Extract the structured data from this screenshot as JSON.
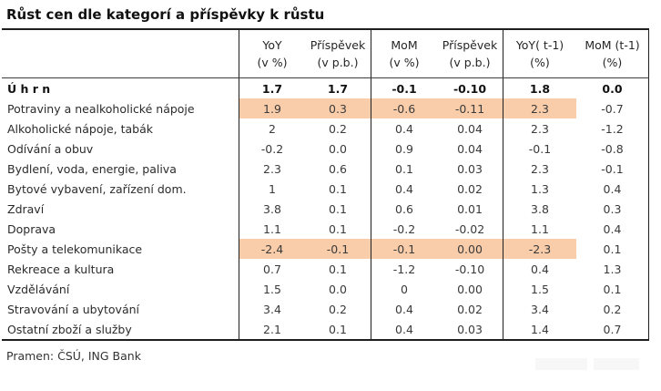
{
  "chart_data": {
    "type": "table",
    "title": "Růst cen dle kategorí a příspěvky k růstu",
    "source": "Pramen: ČSÚ, ING Bank",
    "column_headers": [
      {
        "line1": "YoY",
        "line2": "(v %)"
      },
      {
        "line1": "Příspěvek",
        "line2": "(v p.b.)"
      },
      {
        "line1": "MoM",
        "line2": "(v %)"
      },
      {
        "line1": "Příspěvek",
        "line2": "(v p.b.)"
      },
      {
        "line1": "YoY( t-1)",
        "line2": "(%)"
      },
      {
        "line1": "MoM (t-1)",
        "line2": "(%)"
      }
    ],
    "rows": [
      {
        "label": "Ú h r n",
        "values": [
          "1.7",
          "1.7",
          "-0.1",
          "-0.10",
          "1.8",
          "0.0"
        ],
        "bold": true,
        "highlighted": false
      },
      {
        "label": "Potraviny a nealkoholické nápoje",
        "values": [
          "1.9",
          "0.3",
          "-0.6",
          "-0.11",
          "2.3",
          "-0.7"
        ],
        "bold": false,
        "highlighted": true
      },
      {
        "label": "Alkoholické nápoje, tabák",
        "values": [
          "2",
          "0.2",
          "0.4",
          "0.04",
          "2.3",
          "-1.2"
        ],
        "bold": false,
        "highlighted": false
      },
      {
        "label": "Odívání a obuv",
        "values": [
          "-0.2",
          "0.0",
          "0.9",
          "0.04",
          "-0.1",
          "-0.8"
        ],
        "bold": false,
        "highlighted": false
      },
      {
        "label": "Bydlení, voda, energie, paliva",
        "values": [
          "2.3",
          "0.6",
          "0.1",
          "0.03",
          "2.3",
          "-0.1"
        ],
        "bold": false,
        "highlighted": false
      },
      {
        "label": "Bytové vybavení, zařízení dom.",
        "values": [
          "1",
          "0.1",
          "0.4",
          "0.02",
          "1.3",
          "0.4"
        ],
        "bold": false,
        "highlighted": false
      },
      {
        "label": "Zdraví",
        "values": [
          "3.8",
          "0.1",
          "0.6",
          "0.01",
          "3.8",
          "0.3"
        ],
        "bold": false,
        "highlighted": false
      },
      {
        "label": "Doprava",
        "values": [
          "1.1",
          "0.1",
          "-0.2",
          "-0.02",
          "1.1",
          "0.4"
        ],
        "bold": false,
        "highlighted": false
      },
      {
        "label": "Pošty a telekomunikace",
        "values": [
          "-2.4",
          "-0.1",
          "-0.1",
          "0.00",
          "-2.3",
          "0.1"
        ],
        "bold": false,
        "highlighted": true
      },
      {
        "label": "Rekreace a kultura",
        "values": [
          "0.7",
          "0.1",
          "-1.2",
          "-0.10",
          "0.4",
          "1.3"
        ],
        "bold": false,
        "highlighted": false
      },
      {
        "label": "Vzdělávání",
        "values": [
          "1.5",
          "0.0",
          "0",
          "0.00",
          "1.5",
          "0.1"
        ],
        "bold": false,
        "highlighted": false
      },
      {
        "label": "Stravování a ubytování",
        "values": [
          "3.4",
          "0.2",
          "0.4",
          "0.02",
          "3.4",
          "0.2"
        ],
        "bold": false,
        "highlighted": false
      },
      {
        "label": "Ostatní zboží a služby",
        "values": [
          "2.1",
          "0.1",
          "0.4",
          "0.03",
          "1.4",
          "0.7"
        ],
        "bold": false,
        "highlighted": false
      }
    ]
  },
  "colors": {
    "highlight": "#FACDAA",
    "border": "#1F1F1F",
    "text": "#3A3A3A",
    "title_text": "#111111"
  }
}
